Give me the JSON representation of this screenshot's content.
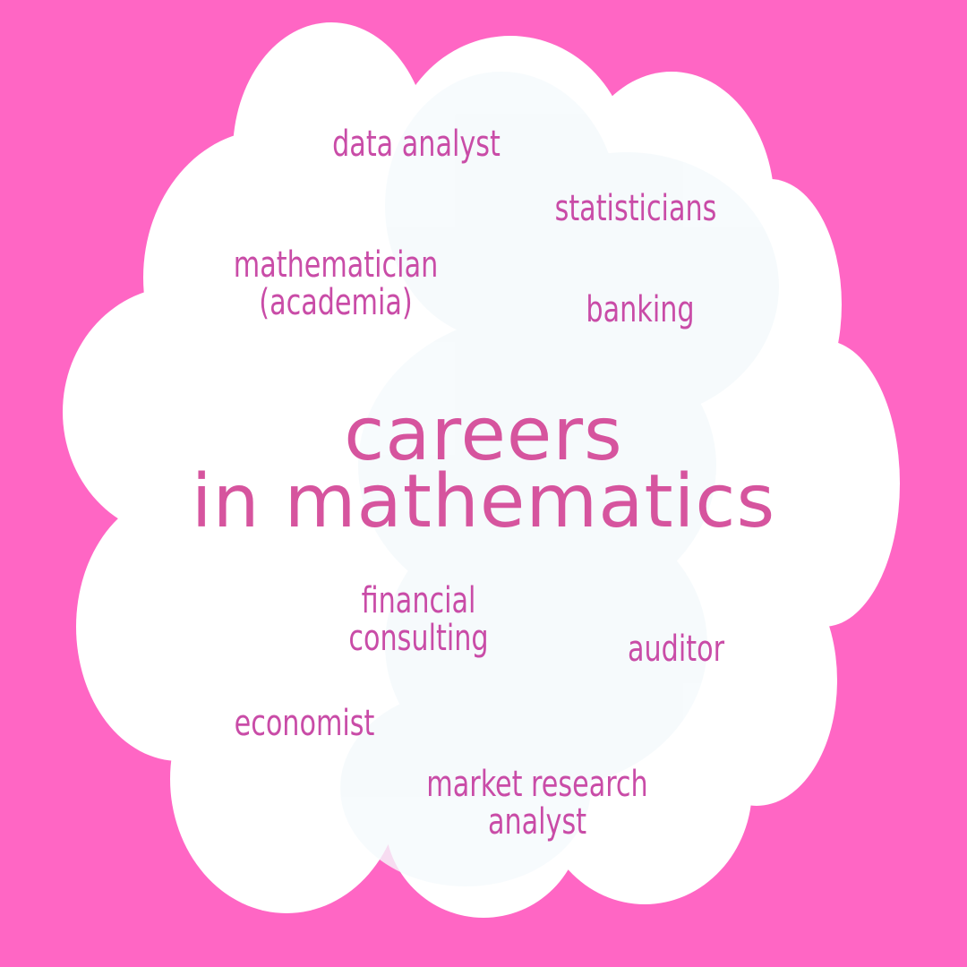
{
  "title": {
    "line1": "careers",
    "line2": "in mathematics"
  },
  "careers": {
    "data_analyst": "data analyst",
    "statisticians": "statisticians",
    "mathematician_line1": "mathematician",
    "mathematician_line2": "(academia)",
    "banking": "banking",
    "financial_consulting_line1": "financial",
    "financial_consulting_line2": "consulting",
    "auditor": "auditor",
    "economist": "economist",
    "market_research_line1": "market research",
    "market_research_line2": "analyst"
  },
  "colors": {
    "background": "#ff66c4",
    "cloud": "#ffffff",
    "cloud_shadow": "#f5fafc",
    "title_text": "#d6549e",
    "term_text": "#c94ca7"
  }
}
